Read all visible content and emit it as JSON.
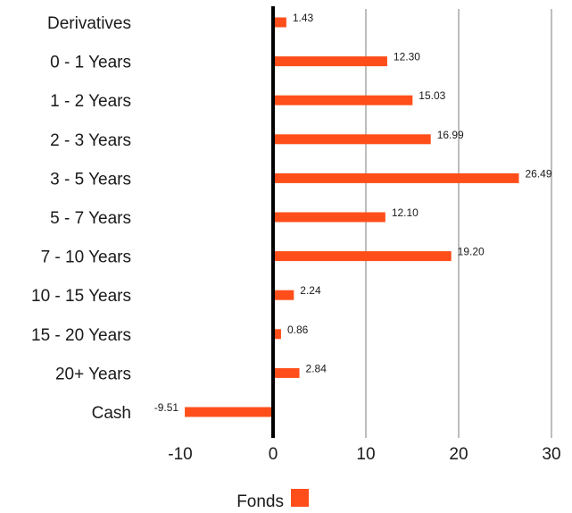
{
  "chart_data": {
    "type": "bar",
    "orientation": "horizontal",
    "categories": [
      "Derivatives",
      "0 - 1 Years",
      "1 - 2 Years",
      "2 - 3 Years",
      "3 - 5 Years",
      "5 - 7 Years",
      "7 - 10 Years",
      "10 - 15 Years",
      "15 - 20 Years",
      "20+ Years",
      "Cash"
    ],
    "series": [
      {
        "name": "Fonds",
        "color": "#ff4e1a",
        "values": [
          1.43,
          12.3,
          15.03,
          16.99,
          26.49,
          12.1,
          19.2,
          2.24,
          0.86,
          2.84,
          -9.51
        ],
        "value_labels": [
          "1.43",
          "12.30",
          "15.03",
          "16.99",
          "26.49",
          "12.10",
          "19.20",
          "2.24",
          "0.86",
          "2.84",
          "-9.51"
        ]
      }
    ],
    "x_ticks": [
      -10,
      0,
      10,
      20,
      30
    ],
    "x_tick_labels": [
      "-10",
      "0",
      "10",
      "20",
      "30"
    ],
    "xlim": [
      -10,
      30
    ],
    "grid": "vertical",
    "legend_position": "bottom-center",
    "title": "",
    "xlabel": "",
    "ylabel": ""
  }
}
